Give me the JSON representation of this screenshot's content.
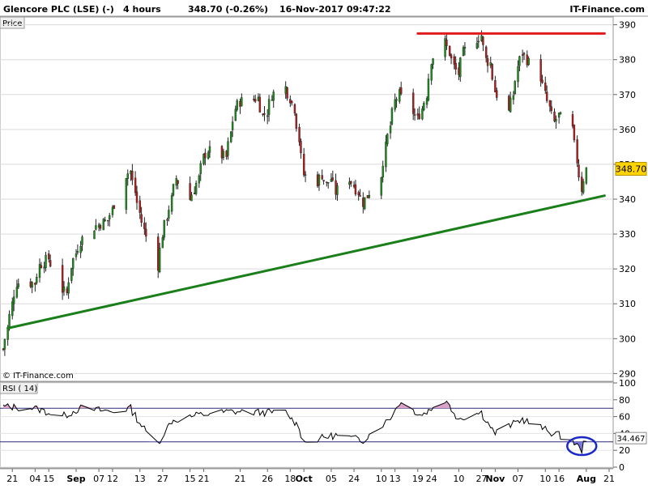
{
  "header": {
    "instrument": "Glencore PLC (LSE) (-)",
    "interval": "4 hours",
    "last_change": "348.70 (-0.26%)",
    "datetime": "16-Nov-2017 09:47:22",
    "brand": "IT-Finance.com"
  },
  "price_panel": {
    "label": "Price",
    "copyright": "© IT-Finance.com",
    "last_price_badge": "348.70",
    "y_ticks": [
      "390",
      "380",
      "370",
      "360",
      "350",
      "340",
      "330",
      "320",
      "310",
      "300",
      "290"
    ]
  },
  "rsi_panel": {
    "label": "RSI ( 14)",
    "last_value_badge": "34.467",
    "y_ticks": [
      "100",
      "80",
      "60",
      "40",
      "20",
      "0"
    ]
  },
  "x_axis": {
    "labels": [
      "13",
      "18",
      "21",
      "27",
      "Aug",
      "04",
      "10",
      "15",
      "21",
      "24",
      "Sep",
      "07",
      "12",
      "15",
      "21",
      "26",
      "Oct",
      "05",
      "10",
      "13",
      "19",
      "24",
      "27",
      "Nov",
      "07",
      "10",
      "16",
      "21"
    ],
    "bold_labels": [
      "Aug",
      "Sep",
      "Oct",
      "Nov"
    ]
  },
  "colors": {
    "support_line": "#1a7f1a",
    "resistance_line": "#e11c1c",
    "rsi_line": "#000000",
    "rsi_overbought_fill": "#d9a0c8",
    "rsi_oversold_fill": "#7777dd",
    "rsi_highlight_circle": "#1a28c8",
    "last_price_badge_bg": "#ffd400",
    "bull_candle": "#1a8f1a",
    "bear_candle": "#b31d1d"
  },
  "chart_data": [
    {
      "type": "candlestick",
      "title": "Glencore PLC (LSE) (-)",
      "ylim": [
        288,
        392
      ],
      "x_range": [
        "2017-07-11",
        "2017-11-21"
      ],
      "series_path": [
        [
          "2017-07-11",
          297
        ],
        [
          "2017-07-12",
          303
        ],
        [
          "2017-07-13",
          310
        ],
        [
          "2017-07-14",
          316
        ],
        [
          "2017-07-18",
          316
        ],
        [
          "2017-07-19",
          321
        ],
        [
          "2017-07-21",
          323
        ],
        [
          "2017-07-24",
          314
        ],
        [
          "2017-07-25",
          313
        ],
        [
          "2017-07-26",
          321
        ],
        [
          "2017-07-28",
          328
        ],
        [
          "2017-07-31",
          332
        ],
        [
          "2017-08-03",
          334
        ],
        [
          "2017-08-04",
          337
        ],
        [
          "2017-08-07",
          347
        ],
        [
          "2017-08-08",
          348
        ],
        [
          "2017-08-10",
          336
        ],
        [
          "2017-08-11",
          331
        ],
        [
          "2017-08-14",
          321
        ],
        [
          "2017-08-15",
          330
        ],
        [
          "2017-08-17",
          340
        ],
        [
          "2017-08-18",
          346
        ],
        [
          "2017-08-21",
          340
        ],
        [
          "2017-08-22",
          343
        ],
        [
          "2017-08-23",
          346
        ],
        [
          "2017-08-24",
          352
        ],
        [
          "2017-08-25",
          354
        ],
        [
          "2017-08-29",
          352
        ],
        [
          "2017-08-30",
          359
        ],
        [
          "2017-08-31",
          366
        ],
        [
          "2017-09-01",
          368
        ],
        [
          "2017-09-05",
          369
        ],
        [
          "2017-09-06",
          364
        ],
        [
          "2017-09-07",
          365
        ],
        [
          "2017-09-08",
          370
        ],
        [
          "2017-09-11",
          372
        ],
        [
          "2017-09-12",
          369
        ],
        [
          "2017-09-13",
          366
        ],
        [
          "2017-09-14",
          357
        ],
        [
          "2017-09-15",
          347
        ],
        [
          "2017-09-18",
          345
        ],
        [
          "2017-09-19",
          347
        ],
        [
          "2017-09-20",
          344
        ],
        [
          "2017-09-21",
          346
        ],
        [
          "2017-09-22",
          342
        ],
        [
          "2017-09-25",
          346
        ],
        [
          "2017-09-26",
          344
        ],
        [
          "2017-09-27",
          342
        ],
        [
          "2017-09-28",
          339
        ],
        [
          "2017-09-29",
          341
        ],
        [
          "2017-10-02",
          347
        ],
        [
          "2017-10-03",
          355
        ],
        [
          "2017-10-04",
          361
        ],
        [
          "2017-10-05",
          368
        ],
        [
          "2017-10-06",
          370
        ],
        [
          "2017-10-09",
          365
        ],
        [
          "2017-10-10",
          363
        ],
        [
          "2017-10-11",
          366
        ],
        [
          "2017-10-12",
          370
        ],
        [
          "2017-10-13",
          380
        ],
        [
          "2017-10-16",
          385
        ],
        [
          "2017-10-17",
          382
        ],
        [
          "2017-10-18",
          378
        ],
        [
          "2017-10-19",
          376
        ],
        [
          "2017-10-20",
          382
        ],
        [
          "2017-10-23",
          386
        ],
        [
          "2017-10-24",
          387
        ],
        [
          "2017-10-25",
          380
        ],
        [
          "2017-10-26",
          379
        ],
        [
          "2017-10-27",
          371
        ],
        [
          "2017-10-30",
          365
        ],
        [
          "2017-10-31",
          370
        ],
        [
          "2017-11-01",
          378
        ],
        [
          "2017-11-02",
          382
        ],
        [
          "2017-11-03",
          380
        ],
        [
          "2017-11-06",
          375
        ],
        [
          "2017-11-07",
          370
        ],
        [
          "2017-11-08",
          366
        ],
        [
          "2017-11-09",
          362
        ],
        [
          "2017-11-10",
          364
        ],
        [
          "2017-11-13",
          360
        ],
        [
          "2017-11-14",
          351
        ],
        [
          "2017-11-15",
          343
        ],
        [
          "2017-11-16",
          348.7
        ]
      ],
      "last_price": 348.7,
      "trendlines": [
        {
          "role": "support",
          "from": [
            "2017-07-12",
            303
          ],
          "to": [
            "2017-11-20",
            341
          ]
        },
        {
          "role": "resistance",
          "from": [
            "2017-10-10",
            387.5
          ],
          "to": [
            "2017-11-20",
            387.5
          ]
        }
      ]
    },
    {
      "type": "line",
      "title": "RSI ( 14)",
      "ylim": [
        0,
        100
      ],
      "reference_levels": [
        70,
        30
      ],
      "series_path": [
        [
          "2017-07-11",
          72
        ],
        [
          "2017-07-18",
          70
        ],
        [
          "2017-07-24",
          60
        ],
        [
          "2017-07-28",
          70
        ],
        [
          "2017-08-04",
          66
        ],
        [
          "2017-08-08",
          70
        ],
        [
          "2017-08-11",
          45
        ],
        [
          "2017-08-14",
          28
        ],
        [
          "2017-08-17",
          55
        ],
        [
          "2017-08-23",
          62
        ],
        [
          "2017-08-30",
          66
        ],
        [
          "2017-09-05",
          65
        ],
        [
          "2017-09-11",
          65
        ],
        [
          "2017-09-14",
          48
        ],
        [
          "2017-09-15",
          30
        ],
        [
          "2017-09-22",
          38
        ],
        [
          "2017-09-28",
          32
        ],
        [
          "2017-10-04",
          58
        ],
        [
          "2017-10-06",
          77
        ],
        [
          "2017-10-11",
          62
        ],
        [
          "2017-10-16",
          80
        ],
        [
          "2017-10-19",
          58
        ],
        [
          "2017-10-24",
          65
        ],
        [
          "2017-10-27",
          40
        ],
        [
          "2017-11-02",
          57
        ],
        [
          "2017-11-08",
          42
        ],
        [
          "2017-11-13",
          32
        ],
        [
          "2017-11-15",
          20
        ],
        [
          "2017-11-16",
          34.5
        ]
      ],
      "last_value": 34.467
    }
  ]
}
